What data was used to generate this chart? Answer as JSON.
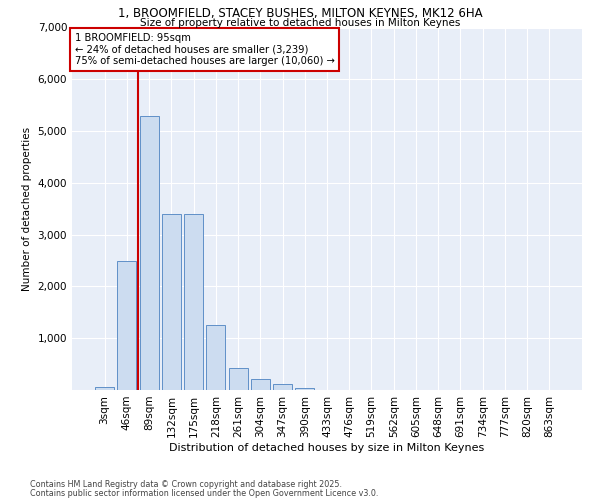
{
  "title_line1": "1, BROOMFIELD, STACEY BUSHES, MILTON KEYNES, MK12 6HA",
  "title_line2": "Size of property relative to detached houses in Milton Keynes",
  "xlabel": "Distribution of detached houses by size in Milton Keynes",
  "ylabel": "Number of detached properties",
  "categories": [
    "3sqm",
    "46sqm",
    "89sqm",
    "132sqm",
    "175sqm",
    "218sqm",
    "261sqm",
    "304sqm",
    "347sqm",
    "390sqm",
    "433sqm",
    "476sqm",
    "519sqm",
    "562sqm",
    "605sqm",
    "648sqm",
    "691sqm",
    "734sqm",
    "777sqm",
    "820sqm",
    "863sqm"
  ],
  "values": [
    60,
    2500,
    5300,
    3400,
    3400,
    1250,
    420,
    220,
    110,
    30,
    5,
    0,
    0,
    0,
    0,
    0,
    0,
    0,
    0,
    0,
    0
  ],
  "bar_color": "#ccdcf0",
  "bar_edge_color": "#6090c8",
  "vline_color": "#cc0000",
  "vline_x_index": 2,
  "annotation_text": "1 BROOMFIELD: 95sqm\n← 24% of detached houses are smaller (3,239)\n75% of semi-detached houses are larger (10,060) →",
  "annotation_box_color": "#ffffff",
  "annotation_box_edge": "#cc0000",
  "background_color": "#ffffff",
  "plot_bg_color": "#e8eef8",
  "grid_color": "#ffffff",
  "ylim": [
    0,
    7000
  ],
  "yticks": [
    0,
    1000,
    2000,
    3000,
    4000,
    5000,
    6000,
    7000
  ],
  "footer_line1": "Contains HM Land Registry data © Crown copyright and database right 2025.",
  "footer_line2": "Contains public sector information licensed under the Open Government Licence v3.0."
}
